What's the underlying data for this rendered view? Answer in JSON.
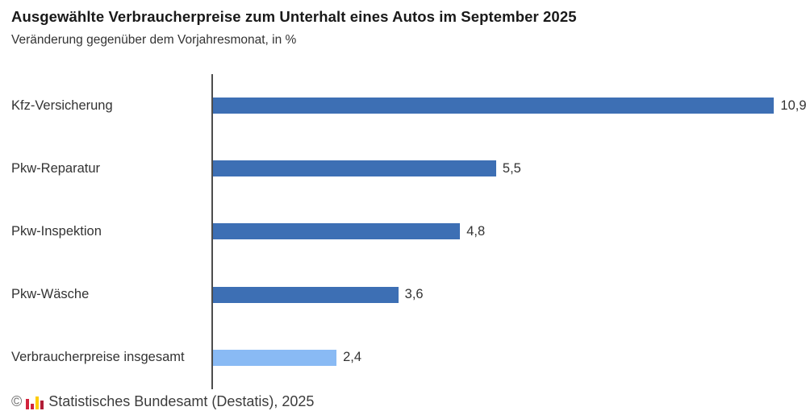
{
  "header": {
    "title": "Ausgewählte Verbraucherpreise zum Unterhalt eines Autos im September 2025",
    "subtitle": "Veränderung gegenüber dem Vorjahresmonat, in %"
  },
  "chart_data": {
    "type": "bar",
    "orientation": "horizontal",
    "title": "Ausgewählte Verbraucherpreise zum Unterhalt eines Autos im September 2025",
    "subtitle": "Veränderung gegenüber dem Vorjahresmonat, in %",
    "xlabel": "",
    "ylabel": "",
    "xlim": [
      0,
      11.6
    ],
    "grid": false,
    "legend": false,
    "categories": [
      "Kfz-Versicherung",
      "Pkw-Reparatur",
      "Pkw-Inspektion",
      "Pkw-Wäsche",
      "Verbraucherpreise insgesamt"
    ],
    "values": [
      10.9,
      5.5,
      4.8,
      3.6,
      2.4
    ],
    "value_labels": [
      "10,9",
      "5,5",
      "4,8",
      "3,6",
      "2,4"
    ],
    "bar_colors": [
      "#3d6fb4",
      "#3d6fb4",
      "#3d6fb4",
      "#3d6fb4",
      "#89baf4"
    ]
  },
  "colors": {
    "accent_dark_blue": "#3d6fb4",
    "accent_light_blue": "#89baf4",
    "axis": "#4d4d4d",
    "text": "#333333"
  },
  "footer": {
    "copyright_symbol": "©",
    "source_text": "Statistisches Bundesamt (Destatis), 2025",
    "logo_bar_colors": [
      "#d2233c",
      "#d2233c",
      "#ffcc00",
      "#b01e36"
    ],
    "logo_bar_heights": [
      13,
      7,
      16,
      11
    ]
  }
}
